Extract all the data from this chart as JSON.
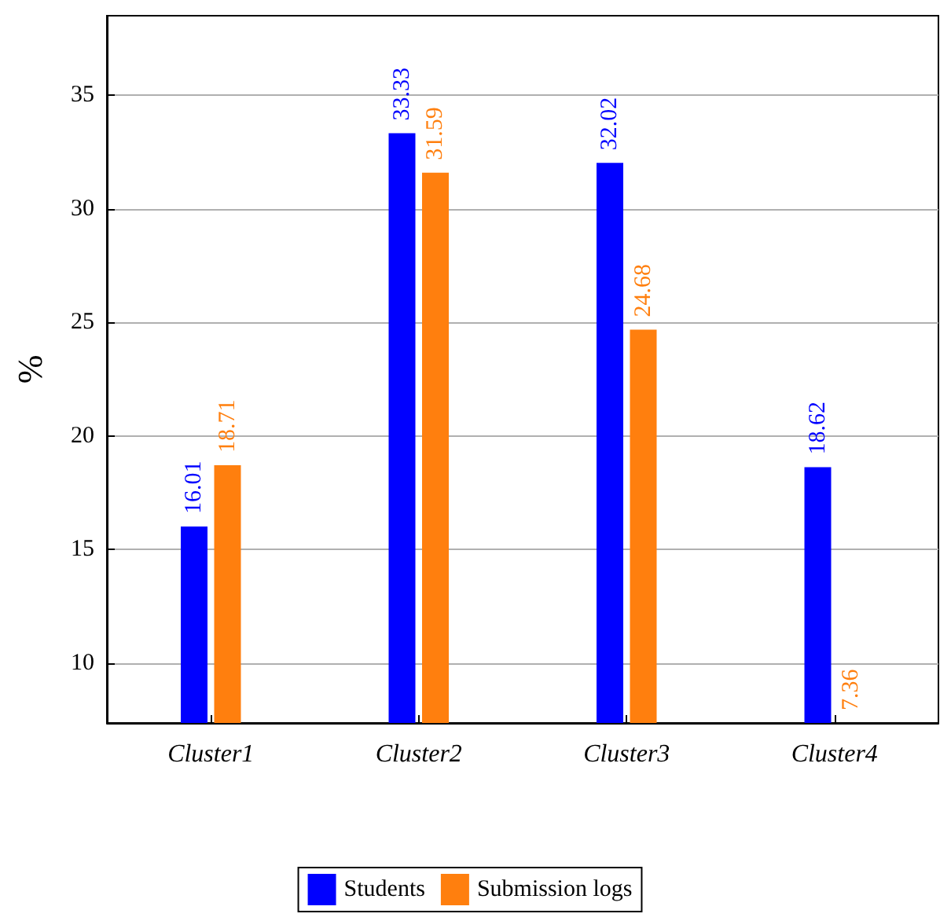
{
  "chart_data": {
    "type": "bar",
    "ylabel": "%",
    "categories": [
      "Cluster1",
      "Cluster2",
      "Cluster3",
      "Cluster4"
    ],
    "series": [
      {
        "name": "Students",
        "color": "#0000ff",
        "values": [
          16.01,
          33.33,
          32.02,
          18.62
        ]
      },
      {
        "name": "Submission logs",
        "color": "#ff7f0e",
        "values": [
          18.71,
          31.59,
          24.68,
          7.36
        ]
      }
    ],
    "ylim": [
      7.36,
      38.5
    ],
    "yticks": [
      10,
      15,
      20,
      25,
      30,
      35
    ],
    "grid": "y",
    "legend": "bottom",
    "data_labels": true
  }
}
